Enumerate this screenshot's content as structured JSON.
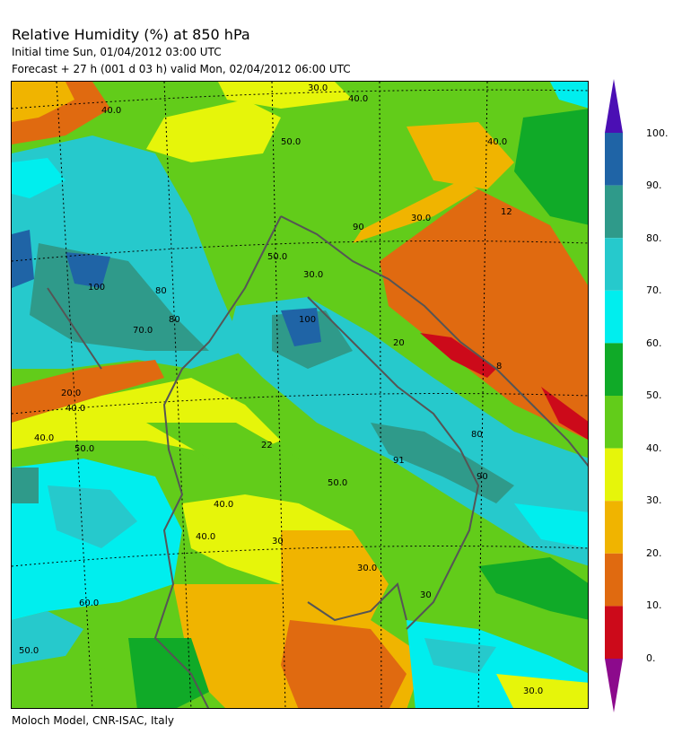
{
  "header": {
    "title": "Relative Humidity (%) at 850 hPa",
    "initial_time": "Initial time  Sun, 01/04/2012  03:00 UTC",
    "forecast": "Forecast  +  27 h  (001 d 03 h)  valid Mon, 02/04/2012 06:00 UTC"
  },
  "footer": {
    "credit": "Moloch Model, CNR-ISAC, Italy"
  },
  "legend": {
    "labels": [
      "100.",
      "90.",
      "80.",
      "70.",
      "60.",
      "50.",
      "40.",
      "30.",
      "20.",
      "10.",
      "0."
    ],
    "bins": [
      {
        "range": "90-100",
        "color": "#1f64a6"
      },
      {
        "range": "80-90",
        "color": "#2f9a8a"
      },
      {
        "range": "70-80",
        "color": "#26c9cc"
      },
      {
        "range": "60-70",
        "color": "#00eeee"
      },
      {
        "range": "50-60",
        "color": "#10aa28"
      },
      {
        "range": "40-50",
        "color": "#62cc1a"
      },
      {
        "range": "30-40",
        "color": "#e6f50a"
      },
      {
        "range": "20-30",
        "color": "#f0b400"
      },
      {
        "range": "10-20",
        "color": "#e06a10"
      },
      {
        "range": "0-10",
        "color": "#cc0a1a"
      }
    ],
    "over_color": "#4b0fb4",
    "under_color": "#8c0a8c"
  },
  "map": {
    "contour_labels": [
      "30.0",
      "40.0",
      "40.0",
      "50.0",
      "40.0",
      "30.0",
      "12",
      "100",
      "50.0",
      "90",
      "30.0",
      "80",
      "70.0",
      "80",
      "100",
      "20",
      "20.0",
      "40.0",
      "80",
      "40.0",
      "22",
      "50.0",
      "50.0",
      "91",
      "90",
      "40.0",
      "30",
      "40.0",
      "30.0",
      "60.0",
      "50.0",
      "30",
      "30.0",
      "8"
    ]
  }
}
